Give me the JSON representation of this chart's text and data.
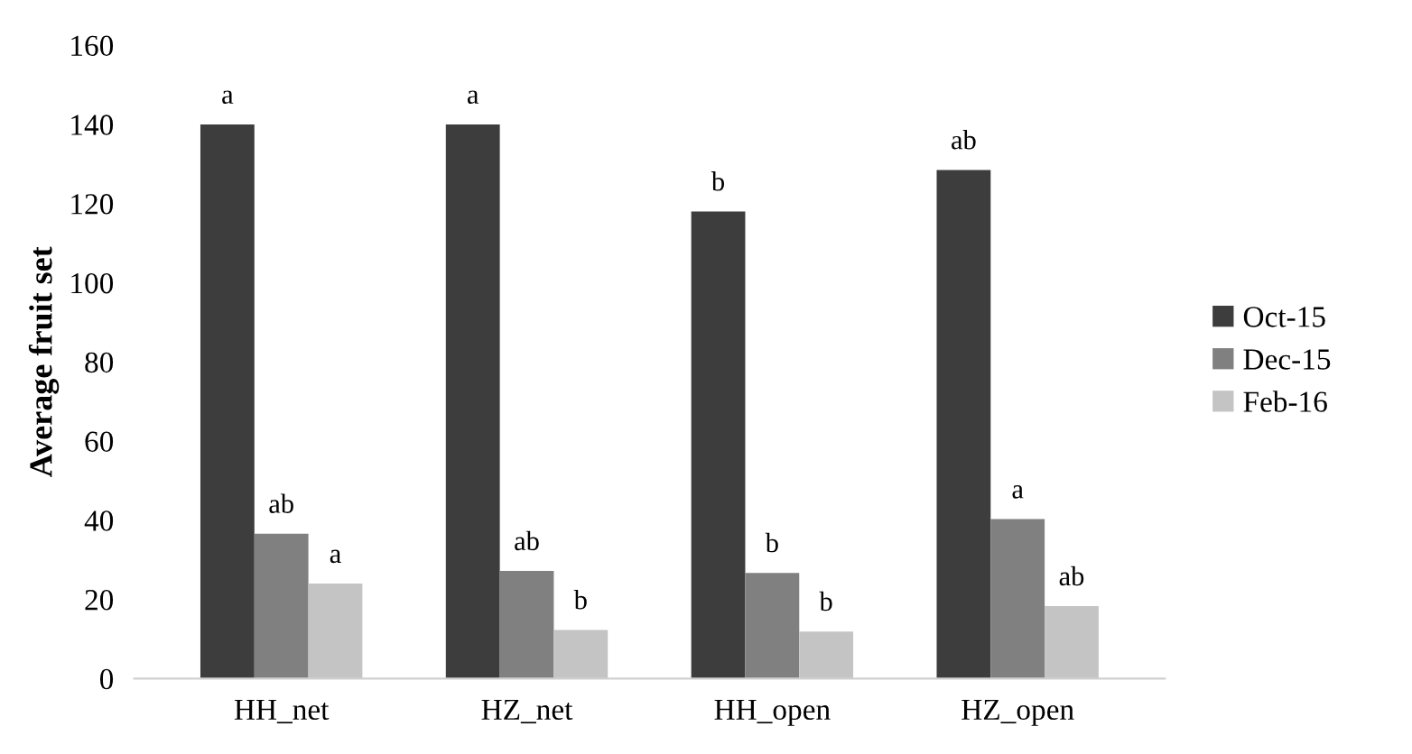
{
  "chart_data": {
    "type": "bar",
    "ylabel": "Average fruit set",
    "categories": [
      "HH_net",
      "HZ_net",
      "HH_open",
      "HZ_open"
    ],
    "series": [
      {
        "name": "Oct-15",
        "color": "#3d3d3d",
        "values": [
          140,
          140,
          118,
          128.5
        ],
        "value_labels": [
          "a",
          "a",
          "b",
          "ab"
        ]
      },
      {
        "name": "Dec-15",
        "color": "#808080",
        "values": [
          36.6,
          27.2,
          26.7,
          40.3
        ],
        "value_labels": [
          "ab",
          "ab",
          "b",
          "a"
        ]
      },
      {
        "name": "Feb-16",
        "color": "#c4c4c4",
        "values": [
          24,
          12.3,
          11.9,
          18.3
        ],
        "value_labels": [
          "a",
          "b",
          "b",
          "ab"
        ]
      }
    ],
    "ylim": [
      0,
      160
    ],
    "yticks": [
      0,
      20,
      40,
      60,
      80,
      100,
      120,
      140,
      160
    ],
    "grid": false,
    "legend": "right"
  }
}
